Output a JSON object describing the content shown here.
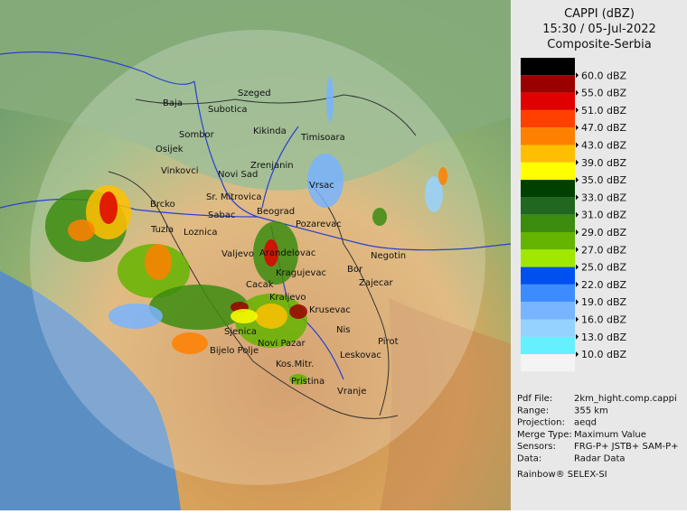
{
  "panel": {
    "title": [
      "CAPPI (dBZ)",
      "15:30 / 05-Jul-2022",
      "Composite-Serbia"
    ],
    "legend": {
      "colors": [
        "#000000",
        "#9b0000",
        "#e10000",
        "#ff4000",
        "#ff8000",
        "#ffbf00",
        "#ffff00",
        "#004000",
        "#206820",
        "#3c8c10",
        "#64b400",
        "#a0e800",
        "#0050f0",
        "#3c8cff",
        "#78b4ff",
        "#96d2ff",
        "#64f0ff",
        "#f4f4f4"
      ],
      "labels": [
        "60.0 dBZ",
        "55.0 dBZ",
        "51.0 dBZ",
        "47.0 dBZ",
        "43.0 dBZ",
        "39.0 dBZ",
        "35.0 dBZ",
        "33.0 dBZ",
        "31.0 dBZ",
        "29.0 dBZ",
        "27.0 dBZ",
        "25.0 dBZ",
        "22.0 dBZ",
        "19.0 dBZ",
        "16.0 dBZ",
        "13.0 dBZ",
        "10.0 dBZ"
      ]
    },
    "info": [
      {
        "key": "Pdf File:",
        "value": "2km_hight.comp.cappi"
      },
      {
        "key": "Range:",
        "value": "355 km"
      },
      {
        "key": "Projection:",
        "value": "aeqd"
      },
      {
        "key": "Merge Type:",
        "value": "Maximum Value"
      },
      {
        "key": "Sensors:",
        "value": "FRG-P+ JSTB+ SAM-P+"
      },
      {
        "key": "Data:",
        "value": "Radar Data"
      }
    ],
    "footer": "Rainbow® SELEX-SI"
  },
  "map": {
    "cities": [
      "Baja",
      "Szeged",
      "Subotica",
      "Sombor",
      "Kikinda",
      "Timisoara",
      "Osijek",
      "Vinkovci",
      "Novi Sad",
      "Zrenjanin",
      "Vrsac",
      "Sr. Mitrovica",
      "Brcko",
      "Sabac",
      "Beograd",
      "Pozarevac",
      "Tuzla",
      "Loznica",
      "Valjevo",
      "Arandelovac",
      "Kragujevac",
      "Bor",
      "Negotin",
      "Zajecar",
      "Cacak",
      "Kraljevo",
      "Krusevac",
      "Nis",
      "Pirot",
      "Sjenica",
      "Bijelo Polje",
      "Novi Pazar",
      "Leskovac",
      "Kos.Mitr.",
      "Pristina",
      "Vranje"
    ]
  }
}
